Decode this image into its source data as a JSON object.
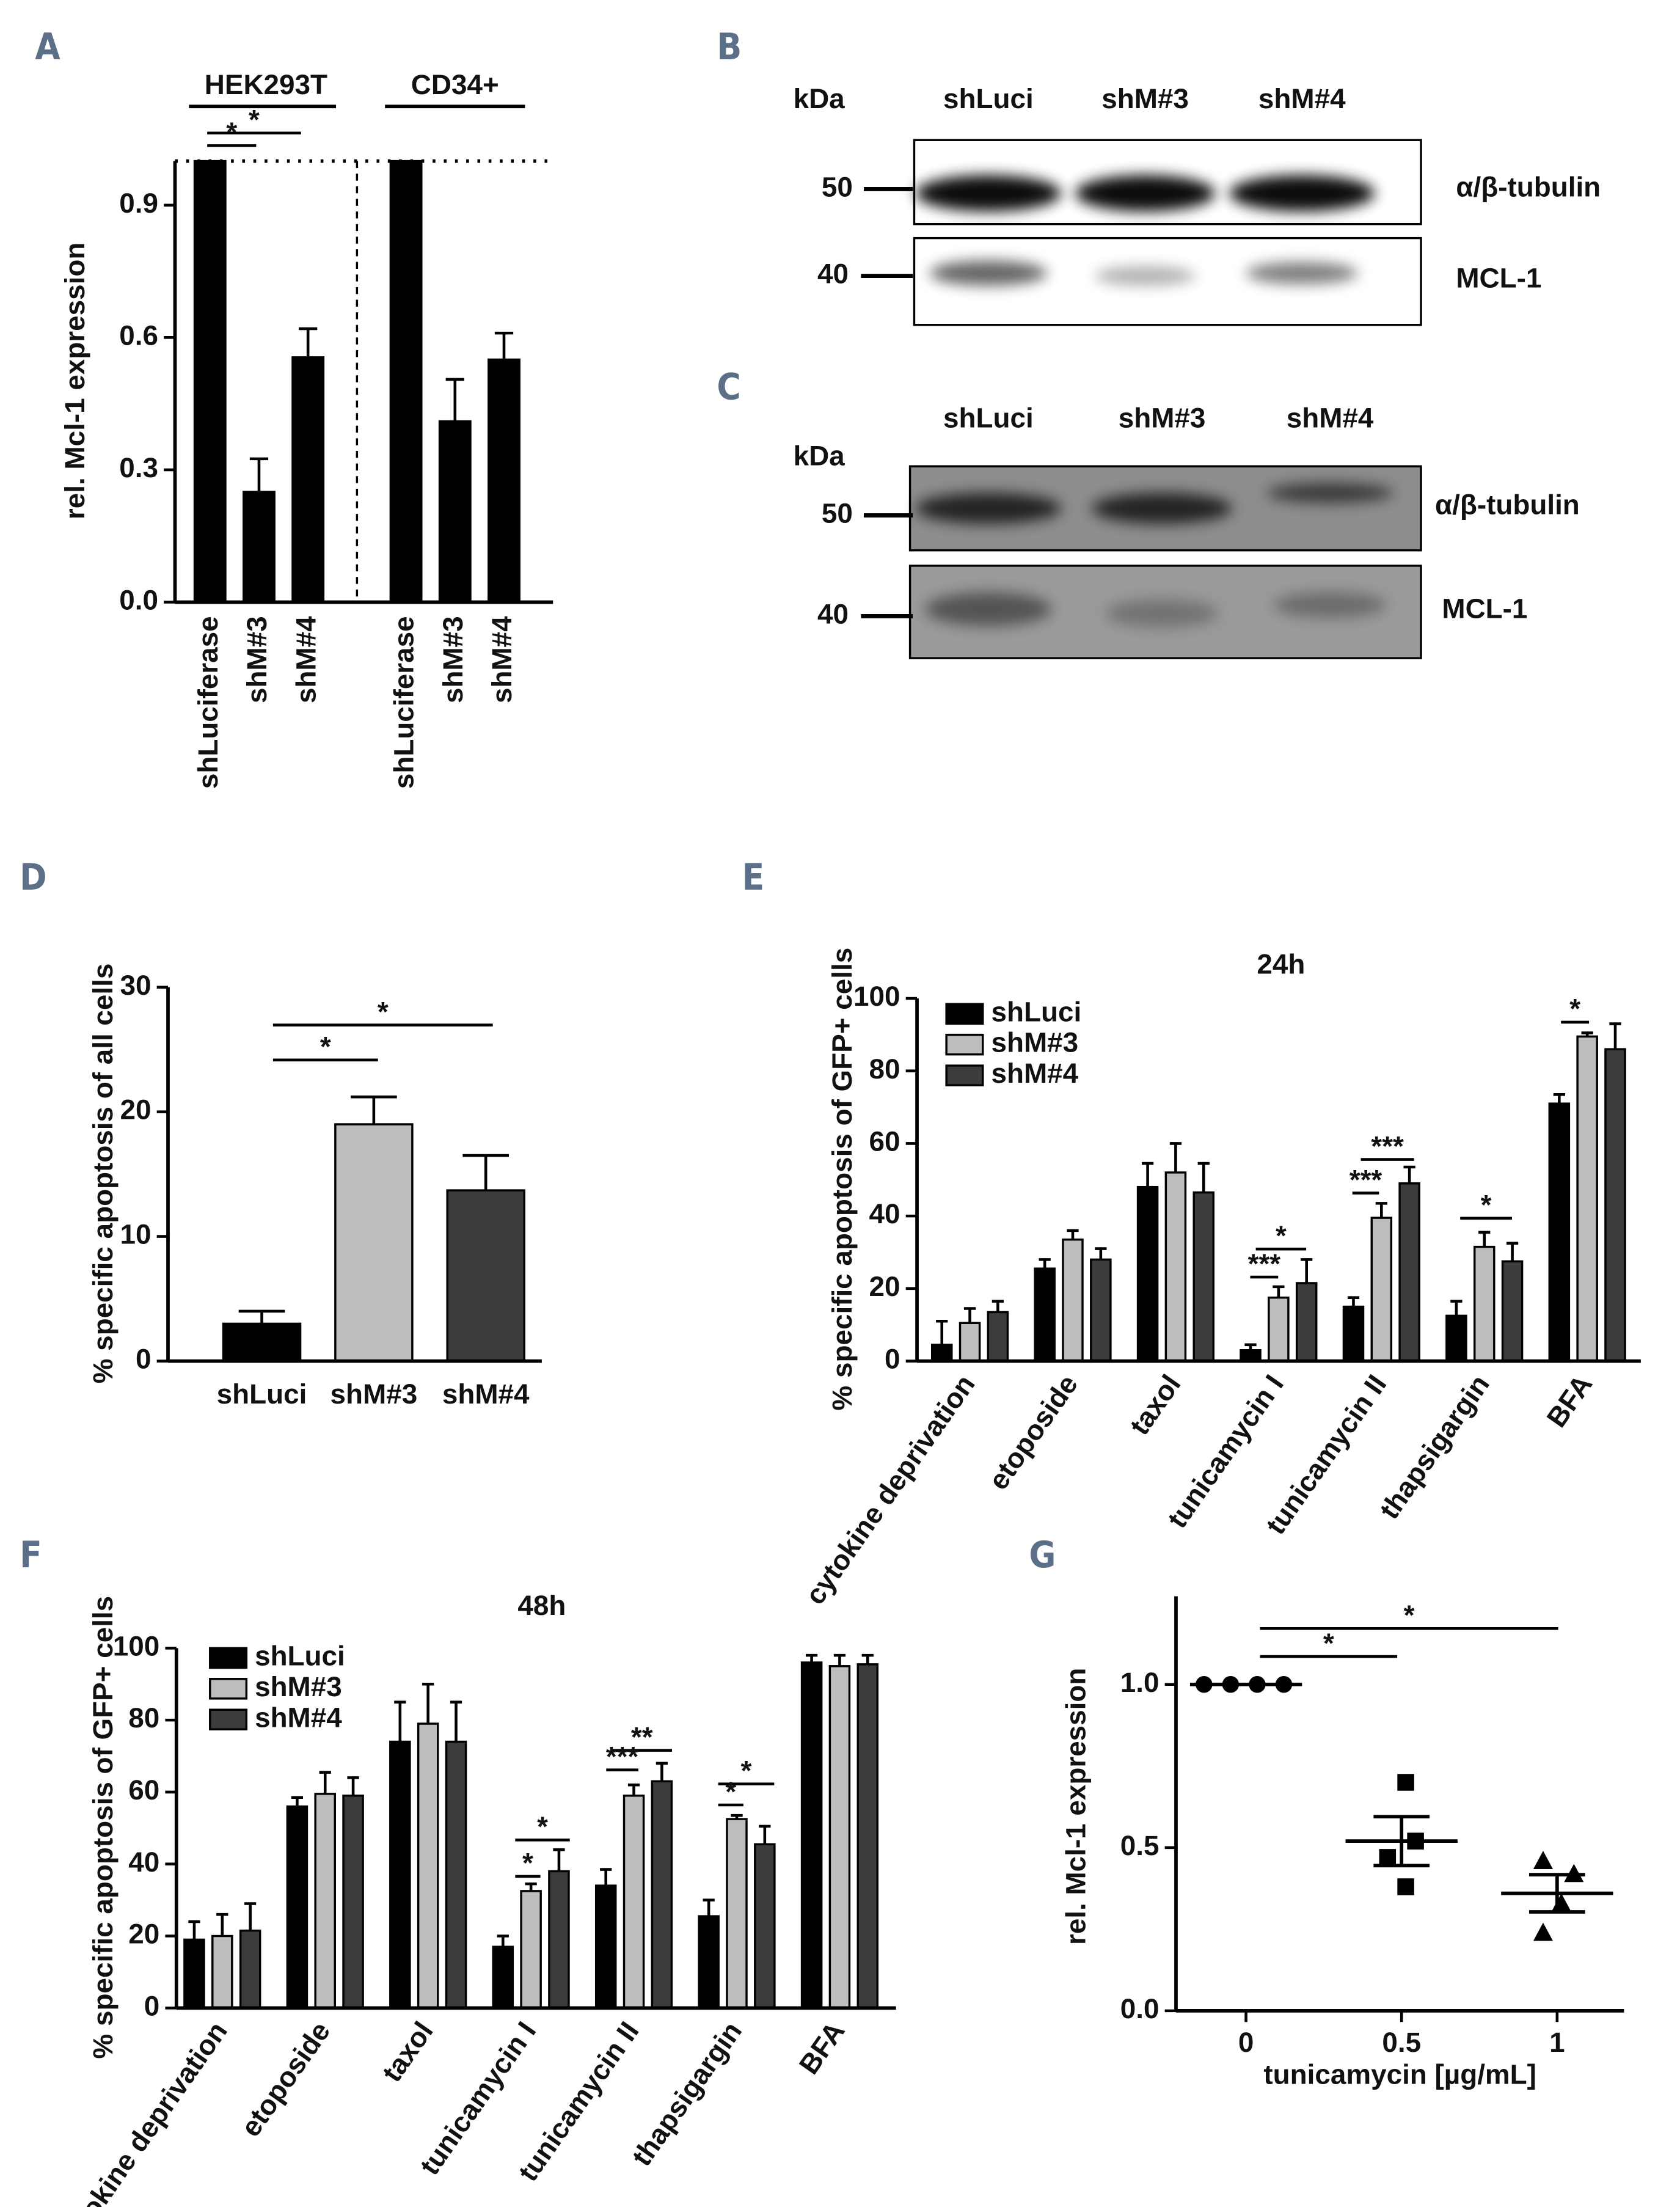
{
  "chart_data": [
    {
      "panel": "A",
      "type": "bar",
      "ylabel": "rel. Mcl-1 expression",
      "groups": [
        "HEK293T",
        "CD34+"
      ],
      "categories": [
        "shLuciferase",
        "shM#3",
        "shM#4",
        "shLuciferase",
        "shM#3",
        "shM#4"
      ],
      "values": [
        1.0,
        0.25,
        0.555,
        1.0,
        0.41,
        0.55
      ],
      "errors": [
        null,
        0.075,
        0.065,
        null,
        0.095,
        0.06
      ],
      "color": "#000000",
      "ylim": [
        0,
        1
      ],
      "yticks": [
        {
          "value": 0,
          "label": "0.0"
        },
        0.3,
        0.6,
        0.9
      ],
      "reference_line": 1,
      "annotations": [
        "*",
        "*"
      ]
    },
    {
      "panel": "D",
      "type": "bar",
      "ylabel": "% specific apoptosis of all cells",
      "categories": [
        "shLuci",
        "shM#3",
        "shM#4"
      ],
      "values": [
        3,
        19,
        13.7
      ],
      "errors": [
        1,
        2.2,
        2.8
      ],
      "colors": [
        "#000000",
        "#bdbdbd",
        "#3c3c3c"
      ],
      "ylim": [
        0,
        30
      ],
      "yticks": [
        0,
        10,
        20,
        30
      ],
      "annotations": [
        "*",
        "*"
      ]
    },
    {
      "panel": "E",
      "type": "bar",
      "title": "24h",
      "ylabel": "% specific apoptosis of GFP+ cells",
      "legend": "upper left",
      "categories": [
        "cytokine deprivation",
        "etoposide",
        "taxol",
        "tunicamycin I",
        "tunicamycin II",
        "thapsigargin",
        "BFA"
      ],
      "series": [
        {
          "name": "shLuci",
          "color": "#000000",
          "values": [
            4.5,
            25.5,
            48,
            3,
            15,
            12.5,
            71
          ],
          "errors": [
            6.5,
            2.5,
            6.5,
            1.5,
            2.5,
            4,
            2.5
          ]
        },
        {
          "name": "shM#3",
          "color": "#bdbdbd",
          "values": [
            10.5,
            33.5,
            52,
            17.5,
            39.5,
            31.5,
            89.5
          ],
          "errors": [
            4,
            2.5,
            8,
            3,
            4,
            4,
            1
          ]
        },
        {
          "name": "shM#4",
          "color": "#3c3c3c",
          "values": [
            13.5,
            28,
            46.5,
            21.5,
            49,
            27.5,
            86
          ],
          "errors": [
            3,
            3,
            8,
            6.5,
            4.5,
            5,
            7
          ]
        }
      ],
      "ylim": [
        0,
        100
      ],
      "yticks": [
        0,
        20,
        40,
        60,
        80,
        100
      ],
      "annotations": [
        "*",
        "*",
        "***",
        "***",
        "***",
        "*"
      ]
    },
    {
      "panel": "F",
      "type": "bar",
      "title": "48h",
      "ylabel": "% specific apoptosis of GFP+ cells",
      "legend": "upper left",
      "categories": [
        "cytokine deprivation",
        "etoposide",
        "taxol",
        "tunicamycin I",
        "tunicamycin II",
        "thapsigargin",
        "BFA"
      ],
      "series": [
        {
          "name": "shLuci",
          "color": "#000000",
          "values": [
            19,
            56,
            74,
            17,
            34,
            25.5,
            96
          ],
          "errors": [
            5,
            2.5,
            11,
            3,
            4.5,
            4.5,
            2
          ]
        },
        {
          "name": "shM#3",
          "color": "#bdbdbd",
          "values": [
            20,
            59.5,
            79,
            32.5,
            59,
            52.5,
            95
          ],
          "errors": [
            6,
            6,
            11,
            2,
            3,
            1,
            3
          ]
        },
        {
          "name": "shM#4",
          "color": "#3c3c3c",
          "values": [
            21.5,
            59,
            74,
            38,
            63,
            45.5,
            95.5
          ],
          "errors": [
            7.5,
            5,
            11,
            6,
            5,
            5,
            2.5
          ]
        }
      ],
      "ylim": [
        0,
        100
      ],
      "yticks": [
        0,
        20,
        40,
        60,
        80,
        100
      ],
      "annotations": [
        "*",
        "*",
        "**",
        "***",
        "*",
        "*"
      ]
    },
    {
      "panel": "G",
      "type": "scatter",
      "xlabel": "tunicamycin [µg/mL]",
      "ylabel": "rel. Mcl-1 expression",
      "series": [
        {
          "marker": "circle",
          "x": [
            0,
            0,
            0,
            0
          ],
          "values": [
            1.0,
            1.0,
            1.0,
            1.0
          ]
        },
        {
          "marker": "square",
          "x": [
            0.5,
            0.5,
            0.5,
            0.5
          ],
          "values": [
            0.7,
            0.52,
            0.47,
            0.38
          ]
        },
        {
          "marker": "triangle",
          "x": [
            1,
            1,
            1,
            1
          ],
          "values": [
            0.46,
            0.42,
            0.33,
            0.24
          ]
        }
      ],
      "means": [
        1.0,
        0.52,
        0.36
      ],
      "sems": [
        0,
        0.075,
        0.057
      ],
      "xlim": [
        -0.225,
        1.215
      ],
      "xticks": [
        0,
        0.5,
        1
      ],
      "ylim": [
        0,
        1.27
      ],
      "yticks": [
        {
          "value": 0,
          "label": "0.0"
        },
        0.5,
        {
          "value": 1,
          "label": "1.0"
        }
      ],
      "annotations": [
        "*",
        "*"
      ]
    }
  ],
  "blots": [
    {
      "panel": "B",
      "unit": "kDa",
      "lanes": [
        "shLuci",
        "shM#3",
        "shM#4"
      ],
      "markers": [
        "50",
        "40"
      ],
      "bands": [
        "α/β-tubulin",
        "MCL-1"
      ]
    },
    {
      "panel": "C",
      "unit": "kDa",
      "lanes": [
        "shLuci",
        "shM#3",
        "shM#4"
      ],
      "markers": [
        "50",
        "40"
      ],
      "bands": [
        "α/β-tubulin",
        "MCL-1"
      ]
    }
  ]
}
